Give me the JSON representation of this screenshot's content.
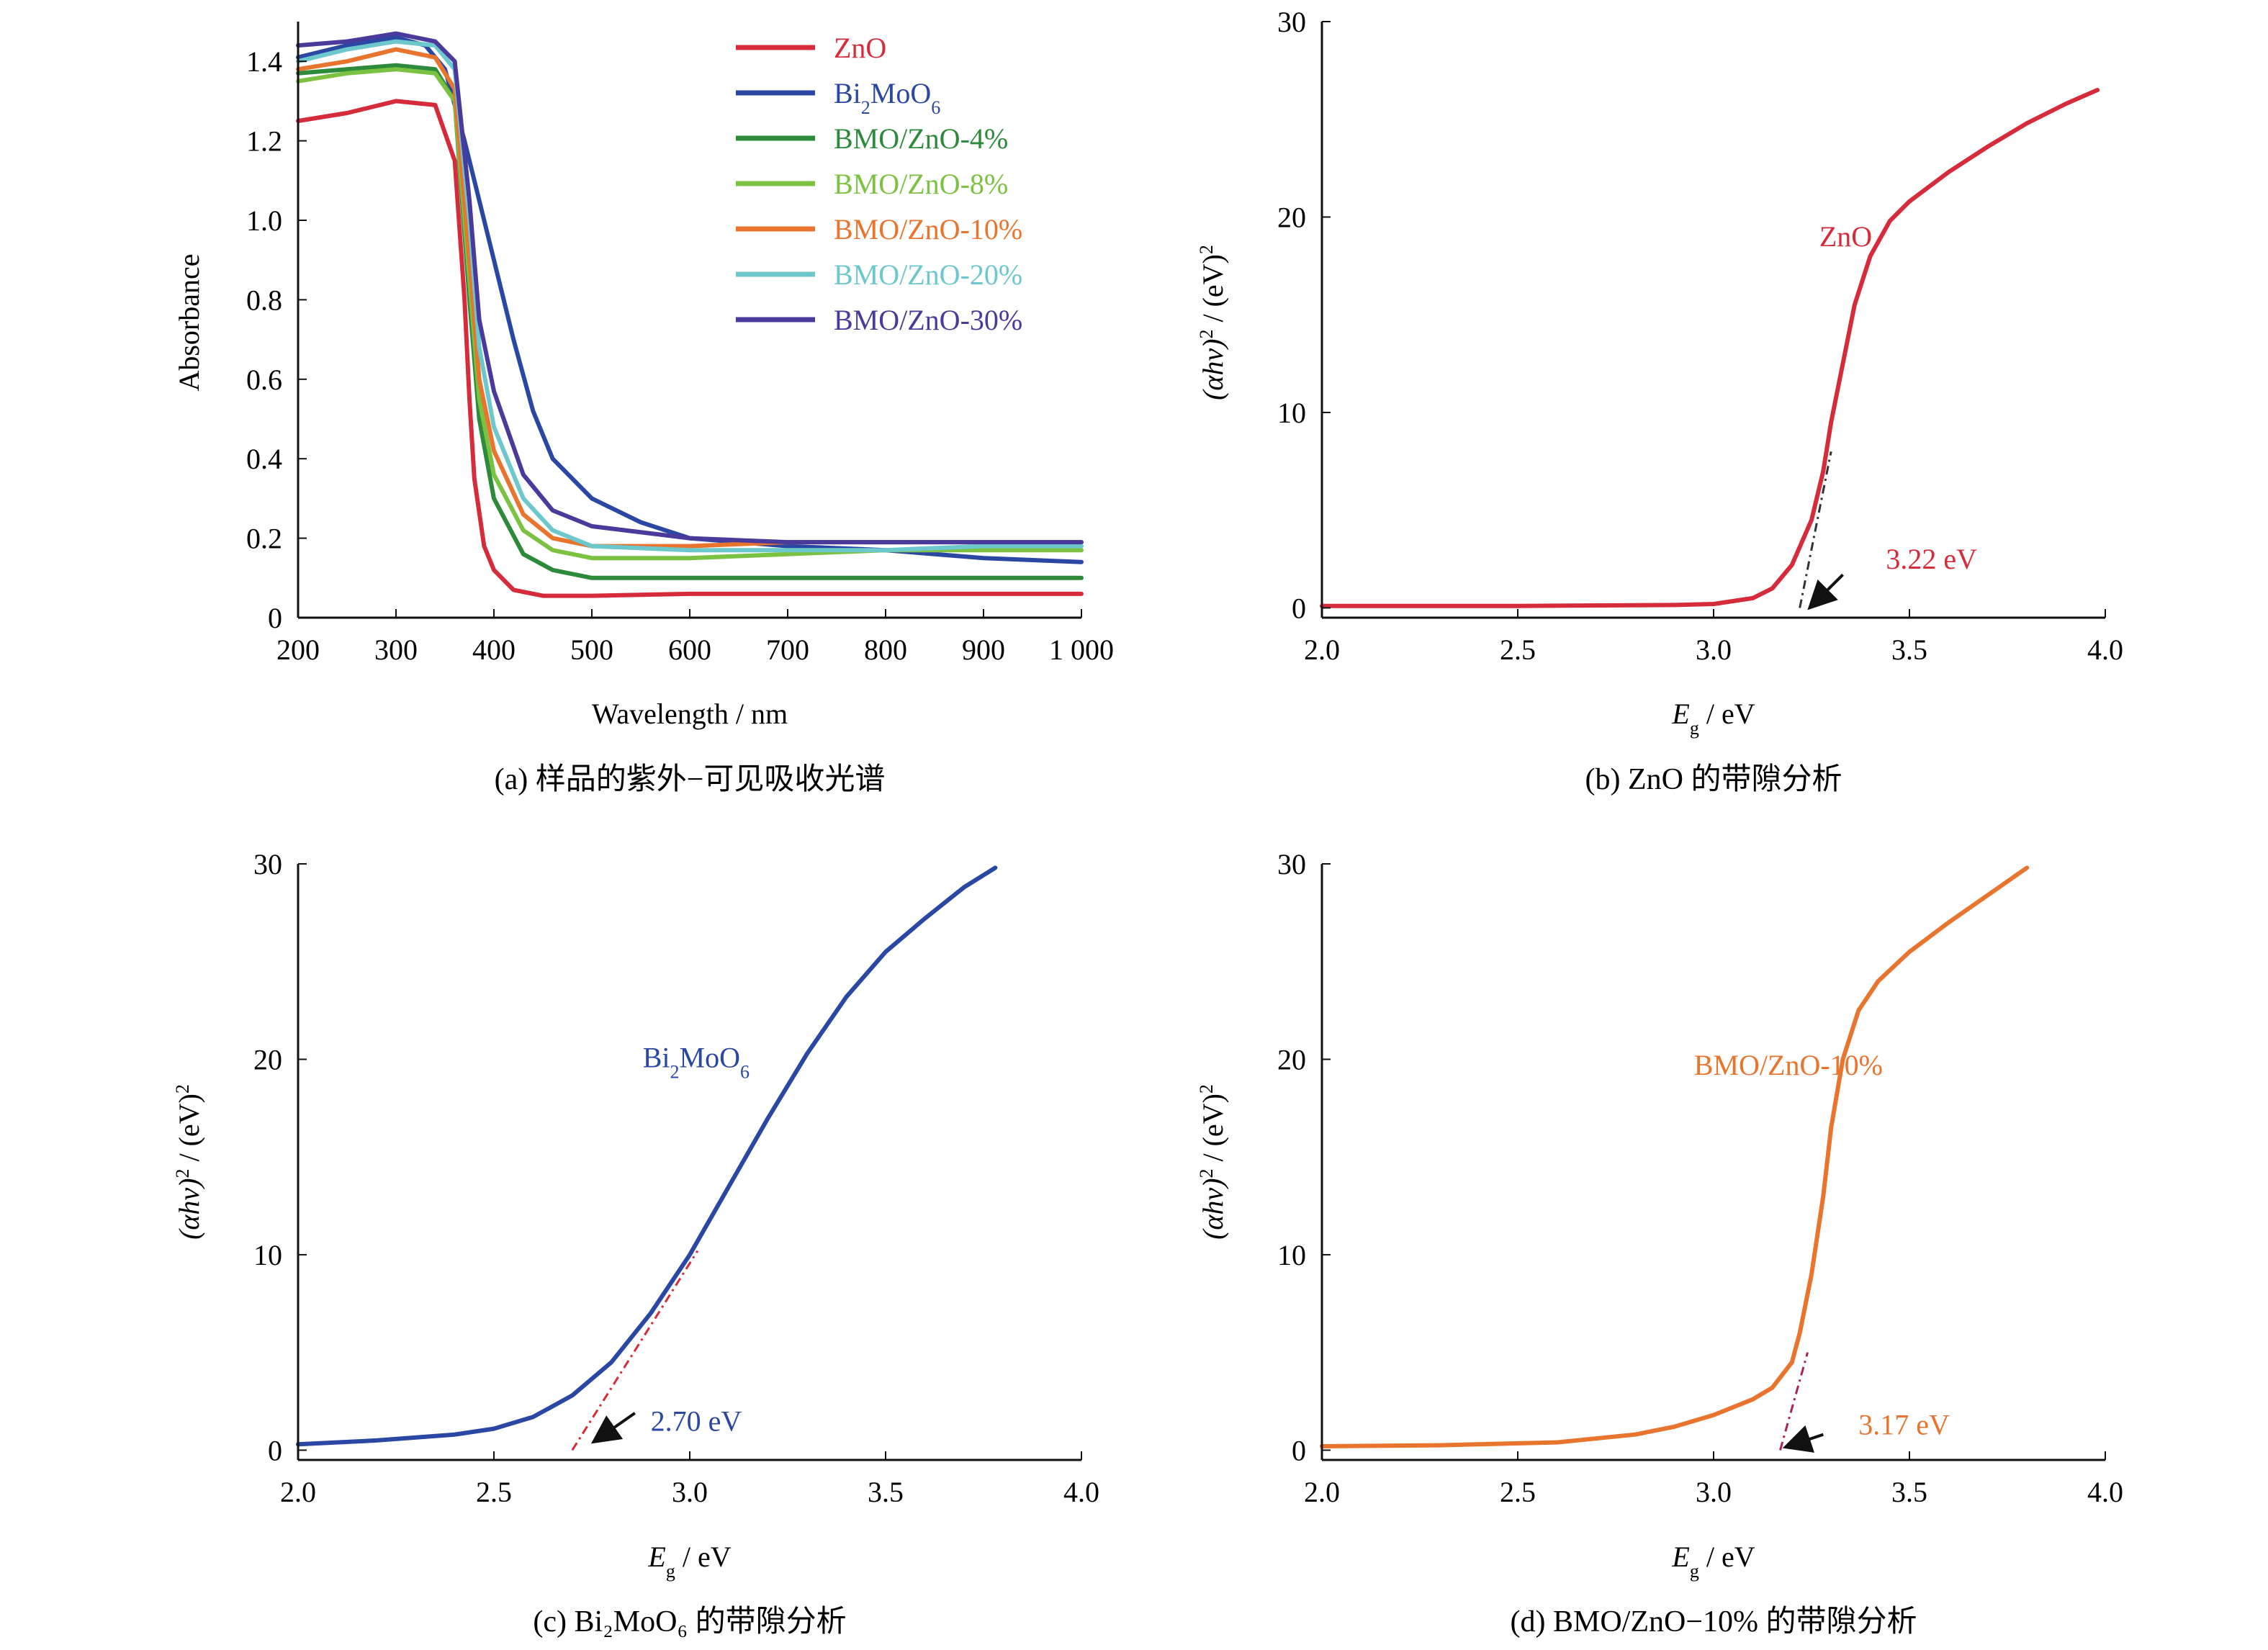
{
  "figure": {
    "panels": [
      {
        "id": "a",
        "caption": "(a) 样品的紫外−可见吸收光谱"
      },
      {
        "id": "b",
        "caption": "(b) ZnO 的带隙分析"
      },
      {
        "id": "c",
        "caption": "(c) Bi₂MoO₆ 的带隙分析"
      },
      {
        "id": "d",
        "caption": "(d) BMO/ZnO−10% 的带隙分析"
      }
    ]
  },
  "chart_data": [
    {
      "id": "a",
      "type": "line",
      "xlabel": "Wavelength / nm",
      "ylabel": "Absorbance",
      "xlim": [
        200,
        1000
      ],
      "ylim": [
        0,
        1.5
      ],
      "xticks": [
        200,
        300,
        400,
        500,
        600,
        700,
        800,
        900,
        1000
      ],
      "xtick_labels": [
        "200",
        "300",
        "400",
        "500",
        "600",
        "700",
        "800",
        "900",
        "1 000"
      ],
      "yticks": [
        0,
        0.2,
        0.4,
        0.6,
        0.8,
        1.0,
        1.2,
        1.4
      ],
      "ytick_labels": [
        "0",
        "0.2",
        "0.4",
        "0.6",
        "0.8",
        "1.0",
        "1.2",
        "1.4"
      ],
      "grid": false,
      "legend_position": "top-right",
      "series": [
        {
          "name": "ZnO",
          "color": "#d62b3a",
          "x": [
            200,
            250,
            300,
            340,
            360,
            370,
            375,
            380,
            390,
            400,
            420,
            450,
            500,
            600,
            700,
            800,
            900,
            1000
          ],
          "y": [
            1.25,
            1.27,
            1.3,
            1.29,
            1.15,
            0.8,
            0.55,
            0.35,
            0.18,
            0.12,
            0.07,
            0.055,
            0.055,
            0.06,
            0.06,
            0.06,
            0.06,
            0.06
          ]
        },
        {
          "name": "Bi₂MoO₆",
          "color": "#2a47a4",
          "x": [
            200,
            250,
            300,
            330,
            350,
            370,
            400,
            420,
            440,
            460,
            500,
            550,
            600,
            700,
            800,
            900,
            1000
          ],
          "y": [
            1.41,
            1.44,
            1.46,
            1.44,
            1.38,
            1.2,
            0.9,
            0.7,
            0.52,
            0.4,
            0.3,
            0.24,
            0.2,
            0.18,
            0.17,
            0.15,
            0.14
          ]
        },
        {
          "name": "BMO/ZnO-4%",
          "color": "#2d8a3a",
          "x": [
            200,
            250,
            300,
            340,
            360,
            375,
            385,
            400,
            430,
            460,
            500,
            600,
            700,
            800,
            900,
            1000
          ],
          "y": [
            1.37,
            1.38,
            1.39,
            1.38,
            1.3,
            0.8,
            0.5,
            0.3,
            0.16,
            0.12,
            0.1,
            0.1,
            0.1,
            0.1,
            0.1,
            0.1
          ]
        },
        {
          "name": "BMO/ZnO-8%",
          "color": "#7cc242",
          "x": [
            200,
            250,
            300,
            340,
            360,
            375,
            385,
            400,
            430,
            460,
            500,
            600,
            700,
            800,
            900,
            1000
          ],
          "y": [
            1.35,
            1.37,
            1.38,
            1.37,
            1.3,
            0.85,
            0.55,
            0.36,
            0.22,
            0.17,
            0.15,
            0.15,
            0.16,
            0.17,
            0.17,
            0.17
          ]
        },
        {
          "name": "BMO/ZnO-10%",
          "color": "#e8742e",
          "x": [
            200,
            250,
            300,
            340,
            360,
            375,
            385,
            400,
            430,
            460,
            500,
            600,
            700,
            800,
            900,
            1000
          ],
          "y": [
            1.38,
            1.4,
            1.43,
            1.41,
            1.33,
            0.9,
            0.6,
            0.42,
            0.26,
            0.2,
            0.18,
            0.18,
            0.19,
            0.19,
            0.19,
            0.19
          ]
        },
        {
          "name": "BMO/ZnO-20%",
          "color": "#6cc8cc",
          "x": [
            200,
            250,
            300,
            340,
            360,
            375,
            385,
            400,
            430,
            460,
            500,
            600,
            700,
            800,
            900,
            1000
          ],
          "y": [
            1.4,
            1.43,
            1.45,
            1.44,
            1.38,
            1.0,
            0.68,
            0.48,
            0.3,
            0.22,
            0.18,
            0.17,
            0.17,
            0.17,
            0.18,
            0.18
          ]
        },
        {
          "name": "BMO/ZnO-30%",
          "color": "#4a3a9c",
          "x": [
            200,
            250,
            300,
            340,
            360,
            375,
            385,
            400,
            430,
            460,
            500,
            600,
            700,
            800,
            900,
            1000
          ],
          "y": [
            1.44,
            1.45,
            1.47,
            1.45,
            1.4,
            1.05,
            0.75,
            0.57,
            0.36,
            0.27,
            0.23,
            0.2,
            0.19,
            0.19,
            0.19,
            0.19
          ]
        }
      ]
    },
    {
      "id": "b",
      "type": "line",
      "xlabel_main": "E",
      "xlabel_sub": "g",
      "xlabel_unit": " / eV",
      "ylabel_prefix": "(αhν)",
      "ylabel_sup1": "2",
      "ylabel_mid": " / (eV)",
      "ylabel_sup2": "2",
      "xlim": [
        2.0,
        4.0
      ],
      "ylim": [
        -0.5,
        30
      ],
      "xticks": [
        2.0,
        2.5,
        3.0,
        3.5,
        4.0
      ],
      "xtick_labels": [
        "2.0",
        "2.5",
        "3.0",
        "3.5",
        "4.0"
      ],
      "yticks": [
        0,
        10,
        20,
        30
      ],
      "ytick_labels": [
        "0",
        "10",
        "20",
        "30"
      ],
      "grid": false,
      "series_label": "ZnO",
      "series_label_at": [
        3.27,
        18.5
      ],
      "series": [
        {
          "name": "ZnO",
          "color": "#d62b3a",
          "x": [
            2.0,
            2.5,
            2.9,
            3.0,
            3.1,
            3.15,
            3.2,
            3.25,
            3.28,
            3.3,
            3.33,
            3.36,
            3.4,
            3.45,
            3.5,
            3.6,
            3.7,
            3.8,
            3.9,
            3.98
          ],
          "y": [
            0.1,
            0.1,
            0.15,
            0.2,
            0.5,
            1.0,
            2.2,
            4.5,
            7.0,
            9.5,
            12.5,
            15.5,
            18.0,
            19.8,
            20.8,
            22.3,
            23.6,
            24.8,
            25.8,
            26.5
          ]
        }
      ],
      "tangent": {
        "color": "#333333",
        "x": [
          3.22,
          3.3
        ],
        "y": [
          0,
          8.0
        ]
      },
      "annotation": {
        "text": "3.22 eV",
        "color": "#d62b3a",
        "arrow_from": [
          3.33,
          1.7
        ],
        "arrow_to": [
          3.25,
          0.1
        ],
        "text_at": [
          3.44,
          2.0
        ]
      }
    },
    {
      "id": "c",
      "type": "line",
      "xlabel_main": "E",
      "xlabel_sub": "g",
      "xlabel_unit": " / eV",
      "ylabel_prefix": "(αhν)",
      "ylabel_sup1": "2",
      "ylabel_mid": " / (eV)",
      "ylabel_sup2": "2",
      "xlim": [
        2.0,
        4.0
      ],
      "ylim": [
        -0.5,
        30
      ],
      "xticks": [
        2.0,
        2.5,
        3.0,
        3.5,
        4.0
      ],
      "xtick_labels": [
        "2.0",
        "2.5",
        "3.0",
        "3.5",
        "4.0"
      ],
      "yticks": [
        0,
        10,
        20,
        30
      ],
      "ytick_labels": [
        "0",
        "10",
        "20",
        "30"
      ],
      "grid": false,
      "series_label_main": "Bi",
      "series_label_sub1": "2",
      "series_label_mid": "MoO",
      "series_label_sub2": "6",
      "series_label_at": [
        2.88,
        19.6
      ],
      "series": [
        {
          "name": "Bi₂MoO₆",
          "color": "#2a47a4",
          "x": [
            2.0,
            2.2,
            2.4,
            2.5,
            2.6,
            2.7,
            2.8,
            2.9,
            3.0,
            3.1,
            3.2,
            3.3,
            3.4,
            3.5,
            3.6,
            3.7,
            3.78
          ],
          "y": [
            0.3,
            0.5,
            0.8,
            1.1,
            1.7,
            2.8,
            4.5,
            7.0,
            10.0,
            13.5,
            17.0,
            20.3,
            23.2,
            25.5,
            27.2,
            28.8,
            29.8
          ]
        }
      ],
      "tangent": {
        "color": "#d62b3a",
        "x": [
          2.7,
          3.02
        ],
        "y": [
          0,
          10.2
        ]
      },
      "annotation": {
        "text": "2.70 eV",
        "color": "#2a47a4",
        "arrow_from": [
          2.86,
          1.9
        ],
        "arrow_to": [
          2.76,
          0.5
        ],
        "text_at": [
          2.9,
          1.0
        ]
      }
    },
    {
      "id": "d",
      "type": "line",
      "xlabel_main": "E",
      "xlabel_sub": "g",
      "xlabel_unit": " / eV",
      "ylabel_prefix": "(αhν)",
      "ylabel_sup1": "2",
      "ylabel_mid": " / (eV)",
      "ylabel_sup2": "2",
      "xlim": [
        2.0,
        4.0
      ],
      "ylim": [
        -0.5,
        30
      ],
      "xticks": [
        2.0,
        2.5,
        3.0,
        3.5,
        4.0
      ],
      "xtick_labels": [
        "2.0",
        "2.5",
        "3.0",
        "3.5",
        "4.0"
      ],
      "yticks": [
        0,
        10,
        20,
        30
      ],
      "ytick_labels": [
        "0",
        "10",
        "20",
        "30"
      ],
      "grid": false,
      "series_label": "BMO/ZnO-10%",
      "series_label_at": [
        2.95,
        19.2
      ],
      "series": [
        {
          "name": "BMO/ZnO-10%",
          "color": "#e8742e",
          "x": [
            2.0,
            2.3,
            2.6,
            2.8,
            2.9,
            3.0,
            3.1,
            3.15,
            3.2,
            3.22,
            3.25,
            3.28,
            3.3,
            3.33,
            3.37,
            3.42,
            3.5,
            3.6,
            3.7,
            3.8
          ],
          "y": [
            0.2,
            0.25,
            0.4,
            0.8,
            1.2,
            1.8,
            2.6,
            3.2,
            4.5,
            6.0,
            9.0,
            13.0,
            16.5,
            20.0,
            22.5,
            24.0,
            25.5,
            27.0,
            28.4,
            29.8
          ]
        }
      ],
      "tangent": {
        "color": "#a8245a",
        "x": [
          3.17,
          3.24
        ],
        "y": [
          0,
          5.0
        ]
      },
      "annotation": {
        "text": "3.17 eV",
        "color": "#e8742e",
        "arrow_from": [
          3.28,
          0.8
        ],
        "arrow_to": [
          3.19,
          0.2
        ],
        "text_at": [
          3.37,
          0.8
        ]
      }
    }
  ]
}
